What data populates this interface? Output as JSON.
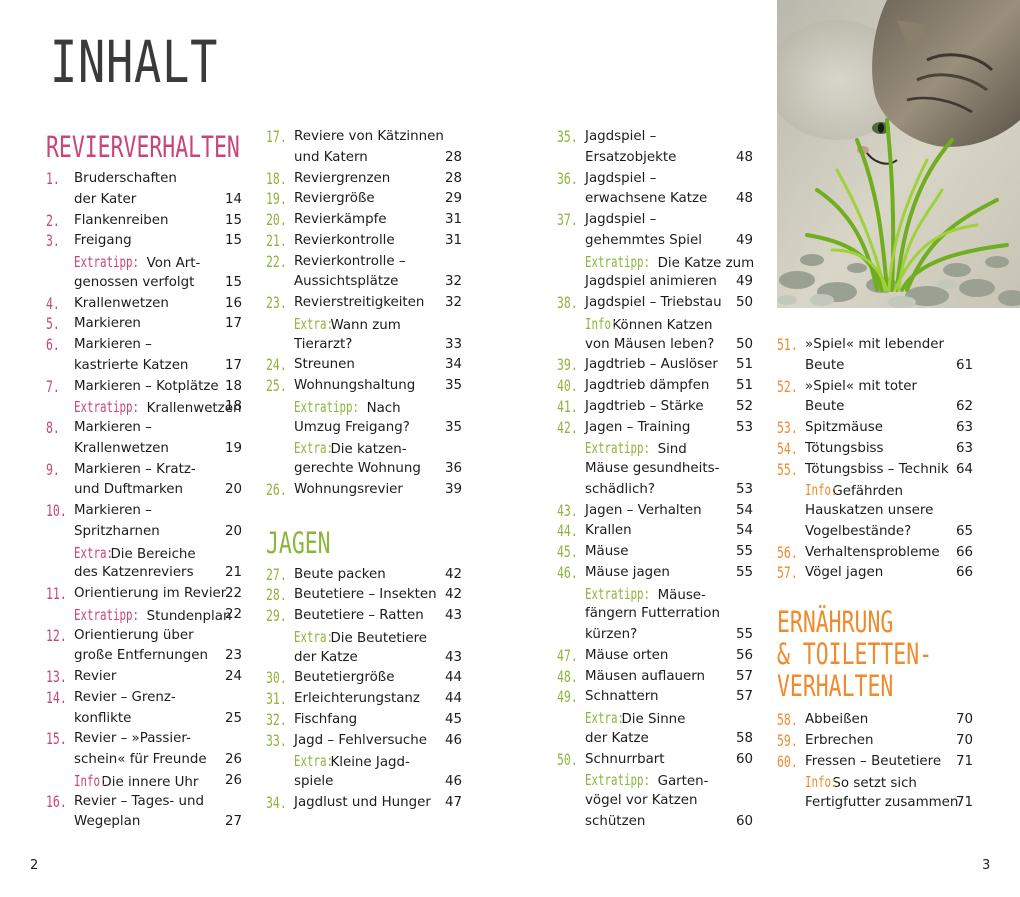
{
  "title": "INHALT",
  "folio_left": "2",
  "folio_right": "3",
  "photo_label": "",
  "colors": {
    "pink": "#c8457a",
    "green": "#8db53c",
    "orange": "#f08a2c"
  },
  "columns": [
    [
      {
        "type": "heading",
        "text": "REVIERVERHALTEN",
        "color": "pink"
      },
      {
        "type": "entry",
        "num": "1.",
        "lines": [
          [
            "Bruderschaften",
            ""
          ],
          [
            "der Kater",
            "14"
          ]
        ]
      },
      {
        "type": "entry",
        "num": "2.",
        "lines": [
          [
            "Flankenreiben",
            "15"
          ]
        ]
      },
      {
        "type": "entry",
        "num": "3.",
        "lines": [
          [
            "Freigang",
            "15"
          ]
        ]
      },
      {
        "type": "entry",
        "num": "",
        "kw": "Extratipp:",
        "lines": [
          [
            "Von Art-",
            ""
          ],
          [
            "genossen verfolgt",
            "15"
          ]
        ]
      },
      {
        "type": "entry",
        "num": "4.",
        "lines": [
          [
            "Krallenwetzen",
            "16"
          ]
        ]
      },
      {
        "type": "entry",
        "num": "5.",
        "lines": [
          [
            "Markieren",
            "17"
          ]
        ]
      },
      {
        "type": "entry",
        "num": "6.",
        "lines": [
          [
            "Markieren –",
            ""
          ],
          [
            "kastrierte Katzen",
            "17"
          ]
        ]
      },
      {
        "type": "entry",
        "num": "7.",
        "lines": [
          [
            "Markieren – Kotplätze",
            "18"
          ]
        ]
      },
      {
        "type": "entry",
        "num": "",
        "kw": "Extratipp:",
        "lines": [
          [
            "Krallenwetzen",
            "18"
          ]
        ]
      },
      {
        "type": "entry",
        "num": "8.",
        "lines": [
          [
            "Markieren –",
            ""
          ],
          [
            "Krallenwetzen",
            "19"
          ]
        ]
      },
      {
        "type": "entry",
        "num": "9.",
        "lines": [
          [
            "Markieren – Kratz-",
            ""
          ],
          [
            "und Duftmarken",
            "20"
          ]
        ]
      },
      {
        "type": "entry",
        "num": "10.",
        "lines": [
          [
            "Markieren –",
            ""
          ],
          [
            "Spritzharnen",
            "20"
          ]
        ]
      },
      {
        "type": "entry",
        "num": "",
        "kw": "Extra:",
        "lines": [
          [
            "Die Bereiche",
            ""
          ],
          [
            "des Katzenreviers",
            "21"
          ]
        ]
      },
      {
        "type": "entry",
        "num": "11.",
        "lines": [
          [
            "Orientierung im Revier",
            "22"
          ]
        ]
      },
      {
        "type": "entry",
        "num": "",
        "kw": "Extratipp:",
        "lines": [
          [
            "Stundenplan",
            "22"
          ]
        ]
      },
      {
        "type": "entry",
        "num": "12.",
        "lines": [
          [
            "Orientierung über",
            ""
          ],
          [
            "große Entfernungen",
            "23"
          ]
        ]
      },
      {
        "type": "entry",
        "num": "13.",
        "lines": [
          [
            "Revier",
            "24"
          ]
        ]
      },
      {
        "type": "entry",
        "num": "14.",
        "lines": [
          [
            "Revier – Grenz-",
            ""
          ],
          [
            "konflikte",
            "25"
          ]
        ]
      },
      {
        "type": "entry",
        "num": "15.",
        "lines": [
          [
            "Revier – »Passier-",
            ""
          ],
          [
            "schein« für Freunde",
            "26"
          ]
        ]
      },
      {
        "type": "entry",
        "num": "",
        "kw": "Info:",
        "lines": [
          [
            "Die innere Uhr",
            "26"
          ]
        ]
      },
      {
        "type": "entry",
        "num": "16.",
        "lines": [
          [
            "Revier – Tages- und",
            ""
          ],
          [
            "Wegeplan",
            "27"
          ]
        ]
      }
    ],
    [
      {
        "type": "entry",
        "num": "17.",
        "lines": [
          [
            "Reviere von Kätzinnen",
            ""
          ],
          [
            "und Katern",
            "28"
          ]
        ]
      },
      {
        "type": "entry",
        "num": "18.",
        "lines": [
          [
            "Reviergrenzen",
            "28"
          ]
        ]
      },
      {
        "type": "entry",
        "num": "19.",
        "lines": [
          [
            "Reviergröße",
            "29"
          ]
        ]
      },
      {
        "type": "entry",
        "num": "20.",
        "lines": [
          [
            "Revierkämpfe",
            "31"
          ]
        ]
      },
      {
        "type": "entry",
        "num": "21.",
        "lines": [
          [
            "Revierkontrolle",
            "31"
          ]
        ]
      },
      {
        "type": "entry",
        "num": "22.",
        "lines": [
          [
            "Revierkontrolle –",
            ""
          ],
          [
            "Aussichtsplätze",
            "32"
          ]
        ]
      },
      {
        "type": "entry",
        "num": "23.",
        "lines": [
          [
            "Revierstreitigkeiten",
            "32"
          ]
        ]
      },
      {
        "type": "entry",
        "num": "",
        "kw": "Extra:",
        "lines": [
          [
            "Wann zum",
            ""
          ],
          [
            "Tierarzt?",
            "33"
          ]
        ]
      },
      {
        "type": "entry",
        "num": "24.",
        "lines": [
          [
            "Streunen",
            "34"
          ]
        ]
      },
      {
        "type": "entry",
        "num": "25.",
        "lines": [
          [
            "Wohnungshaltung",
            "35"
          ]
        ]
      },
      {
        "type": "entry",
        "num": "",
        "kw": "Extratipp:",
        "lines": [
          [
            "Nach",
            ""
          ],
          [
            "Umzug Freigang?",
            "35"
          ]
        ]
      },
      {
        "type": "entry",
        "num": "",
        "kw": "Extra:",
        "lines": [
          [
            "Die katzen-",
            ""
          ],
          [
            "gerechte Wohnung",
            "36"
          ]
        ]
      },
      {
        "type": "entry",
        "num": "26.",
        "lines": [
          [
            "Wohnungsrevier",
            "39"
          ]
        ]
      },
      {
        "type": "gap"
      },
      {
        "type": "heading",
        "text": "JAGEN",
        "color": "green"
      },
      {
        "type": "entry",
        "num": "27.",
        "lines": [
          [
            "Beute packen",
            "42"
          ]
        ]
      },
      {
        "type": "entry",
        "num": "28.",
        "lines": [
          [
            "Beutetiere – Insekten",
            "42"
          ]
        ]
      },
      {
        "type": "entry",
        "num": "29.",
        "lines": [
          [
            "Beutetiere – Ratten",
            "43"
          ]
        ]
      },
      {
        "type": "entry",
        "num": "",
        "kw": "Extra:",
        "lines": [
          [
            "Die Beutetiere",
            ""
          ],
          [
            "der Katze",
            "43"
          ]
        ]
      },
      {
        "type": "entry",
        "num": "30.",
        "lines": [
          [
            "Beutetiergröße",
            "44"
          ]
        ]
      },
      {
        "type": "entry",
        "num": "31.",
        "lines": [
          [
            "Erleichterungstanz",
            "44"
          ]
        ]
      },
      {
        "type": "entry",
        "num": "32.",
        "lines": [
          [
            "Fischfang",
            "45"
          ]
        ]
      },
      {
        "type": "entry",
        "num": "33.",
        "lines": [
          [
            "Jagd – Fehlversuche",
            "46"
          ]
        ]
      },
      {
        "type": "entry",
        "num": "",
        "kw": "Extra:",
        "lines": [
          [
            "Kleine Jagd-",
            ""
          ],
          [
            "spiele",
            "46"
          ]
        ]
      },
      {
        "type": "entry",
        "num": "34.",
        "lines": [
          [
            "Jagdlust und Hunger",
            "47"
          ]
        ]
      }
    ],
    [
      {
        "type": "entry",
        "num": "35.",
        "lines": [
          [
            "Jagdspiel –",
            ""
          ],
          [
            "Ersatzobjekte",
            "48"
          ]
        ]
      },
      {
        "type": "entry",
        "num": "36.",
        "lines": [
          [
            "Jagdspiel –",
            ""
          ],
          [
            "erwachsene Katze",
            "48"
          ]
        ]
      },
      {
        "type": "entry",
        "num": "37.",
        "lines": [
          [
            "Jagdspiel –",
            ""
          ],
          [
            "gehemmtes Spiel",
            "49"
          ]
        ]
      },
      {
        "type": "entry",
        "num": "",
        "kw": "Extratipp:",
        "lines": [
          [
            "Die Katze zum",
            ""
          ],
          [
            "Jagdspiel animieren",
            "49"
          ]
        ]
      },
      {
        "type": "entry",
        "num": "38.",
        "lines": [
          [
            "Jagdspiel – Triebstau",
            "50"
          ]
        ]
      },
      {
        "type": "entry",
        "num": "",
        "kw": "Info:",
        "lines": [
          [
            "Können Katzen",
            ""
          ],
          [
            "von Mäusen leben?",
            "50"
          ]
        ]
      },
      {
        "type": "entry",
        "num": "39.",
        "lines": [
          [
            "Jagdtrieb – Auslöser",
            "51"
          ]
        ]
      },
      {
        "type": "entry",
        "num": "40.",
        "lines": [
          [
            "Jagdtrieb dämpfen",
            "51"
          ]
        ]
      },
      {
        "type": "entry",
        "num": "41.",
        "lines": [
          [
            "Jagdtrieb – Stärke",
            "52"
          ]
        ]
      },
      {
        "type": "entry",
        "num": "42.",
        "lines": [
          [
            "Jagen – Training",
            "53"
          ]
        ]
      },
      {
        "type": "entry",
        "num": "",
        "kw": "Extratipp:",
        "lines": [
          [
            "Sind",
            ""
          ],
          [
            "Mäuse gesundheits-",
            ""
          ],
          [
            "schädlich?",
            "53"
          ]
        ]
      },
      {
        "type": "entry",
        "num": "43.",
        "lines": [
          [
            "Jagen – Verhalten",
            "54"
          ]
        ]
      },
      {
        "type": "entry",
        "num": "44.",
        "lines": [
          [
            "Krallen",
            "54"
          ]
        ]
      },
      {
        "type": "entry",
        "num": "45.",
        "lines": [
          [
            "Mäuse",
            "55"
          ]
        ]
      },
      {
        "type": "entry",
        "num": "46.",
        "lines": [
          [
            "Mäuse jagen",
            "55"
          ]
        ]
      },
      {
        "type": "entry",
        "num": "",
        "kw": "Extratipp:",
        "lines": [
          [
            "Mäuse-",
            ""
          ],
          [
            "fängern Futterration",
            ""
          ],
          [
            "kürzen?",
            "55"
          ]
        ]
      },
      {
        "type": "entry",
        "num": "47.",
        "lines": [
          [
            "Mäuse orten",
            "56"
          ]
        ]
      },
      {
        "type": "entry",
        "num": "48.",
        "lines": [
          [
            "Mäusen auflauern",
            "57"
          ]
        ]
      },
      {
        "type": "entry",
        "num": "49.",
        "lines": [
          [
            "Schnattern",
            "57"
          ]
        ]
      },
      {
        "type": "entry",
        "num": "",
        "kw": "Extra:",
        "lines": [
          [
            "Die Sinne",
            ""
          ],
          [
            "der Katze",
            "58"
          ]
        ]
      },
      {
        "type": "entry",
        "num": "50.",
        "lines": [
          [
            "Schnurrbart",
            "60"
          ]
        ]
      },
      {
        "type": "entry",
        "num": "",
        "kw": "Extratipp:",
        "lines": [
          [
            "Garten-",
            ""
          ],
          [
            "vögel vor Katzen",
            ""
          ],
          [
            "schützen",
            "60"
          ]
        ]
      }
    ],
    [
      {
        "type": "entry",
        "num": "51.",
        "lines": [
          [
            "»Spiel« mit lebender",
            ""
          ],
          [
            "Beute",
            "61"
          ]
        ]
      },
      {
        "type": "entry",
        "num": "52.",
        "lines": [
          [
            "»Spiel« mit toter",
            ""
          ],
          [
            "Beute",
            "62"
          ]
        ]
      },
      {
        "type": "entry",
        "num": "53.",
        "lines": [
          [
            "Spitzmäuse",
            "63"
          ]
        ]
      },
      {
        "type": "entry",
        "num": "54.",
        "lines": [
          [
            "Tötungsbiss",
            "63"
          ]
        ]
      },
      {
        "type": "entry",
        "num": "55.",
        "lines": [
          [
            "Tötungsbiss – Technik",
            "64"
          ]
        ]
      },
      {
        "type": "entry",
        "num": "",
        "kw": "Info:",
        "lines": [
          [
            "Gefährden",
            ""
          ],
          [
            "Hauskatzen unsere",
            ""
          ],
          [
            "Vogelbestände?",
            "65"
          ]
        ]
      },
      {
        "type": "entry",
        "num": "56.",
        "lines": [
          [
            "Verhaltensprobleme",
            "66"
          ]
        ]
      },
      {
        "type": "entry",
        "num": "57.",
        "lines": [
          [
            "Vögel jagen",
            "66"
          ]
        ]
      },
      {
        "type": "gap"
      },
      {
        "type": "heading",
        "text": "ERNÄHRUNG & TOILETTEN- VERHALTEN",
        "lines": [
          "ERNÄHRUNG",
          "& TOILETTEN-",
          "VERHALTEN"
        ],
        "color": "orange"
      },
      {
        "type": "entry",
        "num": "58.",
        "lines": [
          [
            "Abbeißen",
            "70"
          ]
        ]
      },
      {
        "type": "entry",
        "num": "59.",
        "lines": [
          [
            "Erbrechen",
            "70"
          ]
        ]
      },
      {
        "type": "entry",
        "num": "60.",
        "lines": [
          [
            "Fressen – Beutetiere",
            "71"
          ]
        ]
      },
      {
        "type": "entry",
        "num": "",
        "kw": "Info:",
        "lines": [
          [
            "So setzt sich",
            ""
          ],
          [
            "Fertigfutter zusammen",
            "71"
          ]
        ]
      }
    ]
  ]
}
